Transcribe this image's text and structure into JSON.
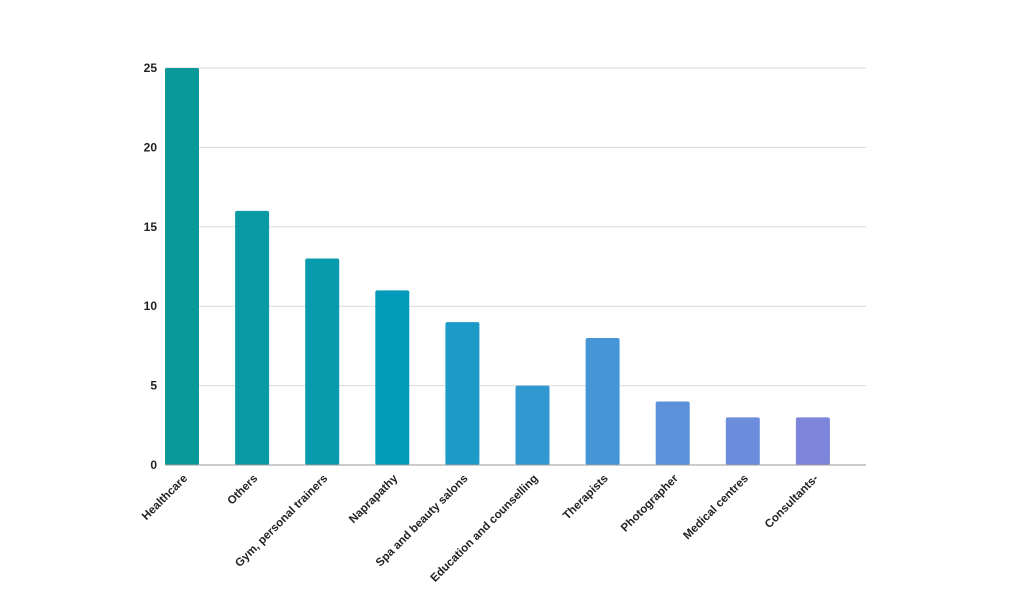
{
  "chart_data": {
    "type": "bar",
    "categories": [
      "Healthcare",
      "Others",
      "Gym, personal trainers",
      "Naprapathy",
      "Spa and beauty salons",
      "Education and counselling",
      "Therapists",
      "Photographer",
      "Medical centres",
      "Consultants-"
    ],
    "values": [
      25,
      16,
      13,
      11,
      9,
      5,
      8,
      4,
      3,
      3
    ],
    "bar_colors": [
      "#0b9898",
      "#0a9aa4",
      "#079bad",
      "#049bbb",
      "#1c9bc9",
      "#3199d0",
      "#4695d6",
      "#5a91d9",
      "#6c8cdc",
      "#7d86da"
    ],
    "title": "",
    "xlabel": "",
    "ylabel": "",
    "ylim": [
      0,
      25
    ],
    "yticks": [
      0,
      5,
      10,
      15,
      20,
      25
    ],
    "grid": true,
    "legend": "none"
  }
}
